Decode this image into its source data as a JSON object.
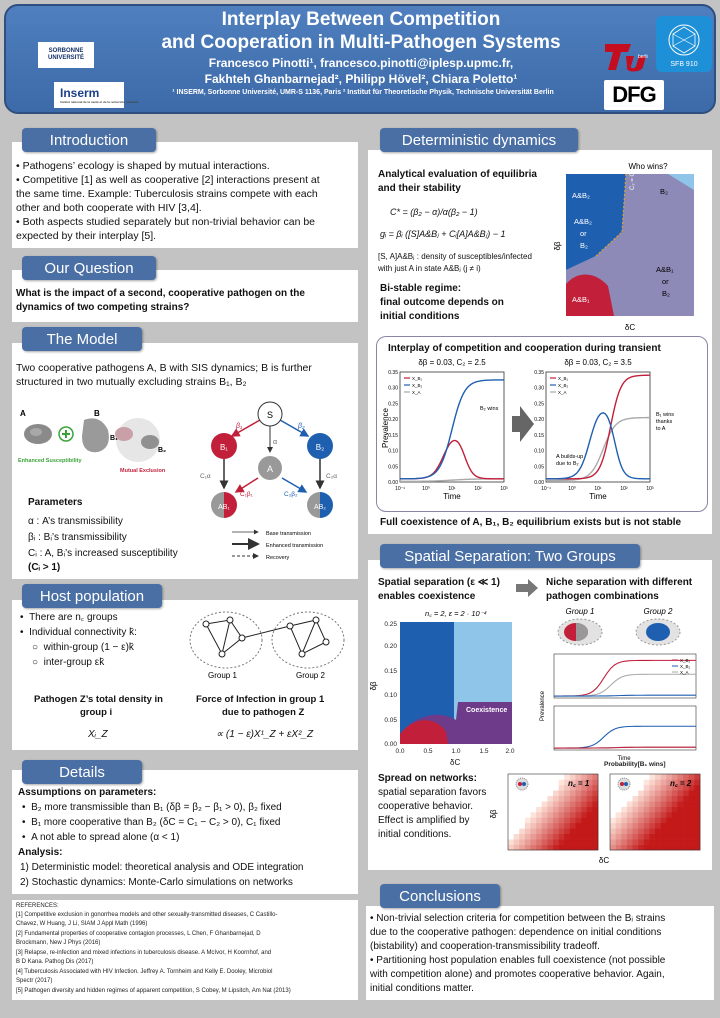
{
  "header": {
    "title_line1": "Interplay Between Competition",
    "title_line2": "and Cooperation in Multi-Pathogen Systems",
    "authors_line1": "Francesco Pinotti¹, francesco.pinotti@iplesp.upmc.fr,",
    "authors_line2": "Fakhteh Ghanbarnejad², Philipp Hövel², Chiara Poletto¹",
    "affiliations": "¹ INSERM, Sorbonne Université, UMR-S 1136, Paris ² Institut für Theoretische Physik, Technische Universität Berlin",
    "logos": {
      "sorbonne": "SORBONNE UNIVERSITÉ",
      "inserm": "Inserm",
      "inserm_sub": "Institut national de la santé et de la recherche médicale",
      "tu": "berlin",
      "sfb": "SFB 910",
      "dfg": "DFG"
    }
  },
  "intro": {
    "heading": "Introduction",
    "lines": [
      "• Pathogens’ ecology is shaped by mutual interactions.",
      "• Competitive [1] as well as cooperative [2] interactions present at",
      "the same time. Example: Tuberculosis strains compete with each",
      "other and both cooperate with HIV [3,4].",
      "• Both aspects studied separately but non-trivial behavior can be",
      "expected by their interplay [5]."
    ]
  },
  "question": {
    "heading": "Our Question",
    "line1": "What is the impact of a second, cooperative pathogen on the",
    "line2": "dynamics of two competing strains?"
  },
  "model": {
    "heading": "The Model",
    "line1": "Two cooperative pathogens A, B with SIS dynamics; B is further",
    "line2": "structured in two mutually excluding strains B₁, B₂",
    "fig": {
      "A": "A",
      "B": "B",
      "B1": "B₁",
      "B2": "B₂",
      "enh": "Enhanced Susceptibility",
      "mut": "Mutual Exclusion",
      "S": "S",
      "Anode": "A",
      "B1node": "B₁",
      "B2node": "B₂",
      "AB1": "AB₁",
      "AB2": "AB₂",
      "beta1": "β₁",
      "beta2": "β₂",
      "alpha": "α",
      "c1a": "C₁α",
      "c2a": "C₂α",
      "c1b1": "C₁β₁",
      "c2b2": "C₂β₂"
    },
    "params_title": "Parameters",
    "p_alpha": "α : A’s transmissibility",
    "p_beta": "βᵢ : Bᵢ’s transmissibility",
    "p_c": "Cᵢ : A, Bᵢ’s increased susceptibility",
    "p_c2": "(Cᵢ > 1)",
    "leg_base": "Base transmission",
    "leg_enh": "Enhanced transmission",
    "leg_rec": "Recovery"
  },
  "host": {
    "heading": "Host population",
    "items": [
      "There are n꜀ groups",
      "Individual connectivity k̄:",
      "within-group (1 − ε)k̄",
      "inter-group  εk̄"
    ],
    "density1": "Pathogen Z’s total density in",
    "density2": "group i",
    "density_sym": "Xᵢ_Z",
    "force1": "Force of Infection in group 1",
    "force2": "due to pathogen Z",
    "force_eq": "∝ (1 − ε)X¹_Z + εX²_Z",
    "group1": "Group 1",
    "group2": "Group 2"
  },
  "details": {
    "heading": "Details",
    "assume": "Assumptions on parameters:",
    "a1": "B₂ more transmissible than B₁ (δβ = β₂ − β₁ > 0), β₂ fixed",
    "a2": "B₁ more cooperative than B₂ (δC = C₁ − C₂ > 0), C₁ fixed",
    "a3": "A not able to spread alone (α < 1)",
    "analysis": "Analysis:",
    "n1": "1)  Deterministic model: theoretical analysis and ODE integration",
    "n2": "2)  Stochastic dynamics: Monte-Carlo simulations on networks"
  },
  "refs": {
    "title": "REFERENCES:",
    "lines": [
      "[1] Competitive exclusion in gonorrhea models and other sexually-transmitted diseases, C Castillo-",
      "Chavez, W Huang, J Li, SIAM J Appl Math (1996)",
      "[2] Fundamental properties of cooperative contagion processes, L Chen, F Ghanbarnejad, D",
      "Brockmann, New J Phys (2016)",
      "[3] Relapse, re-infection and mixed infections in tuberculosis disease. A McIvor, H Koornhof, and",
      "B D Kana. Pathog Dis (2017)",
      "[4] Tuberculosis Associated with HIV Infection. Jeffrey A. Tornheim and Kelly E. Dooley, Microbiol",
      "Spectr (2017)",
      "[5] Pathogen diversity and hidden regimes of apparent competition, S Cobey, M Lipsitch,  Am Nat (2013)"
    ]
  },
  "det": {
    "heading": "Deterministic dynamics",
    "analytic1": "Analytical evaluation of equilibria",
    "analytic2": "and their stability",
    "eq1": "C* = (β₂ − α)/α(β₂ − 1)",
    "eq2": "gᵢ = βᵢ ([S]A&Bⱼ + Cᵢ[A]A&Bⱼ) − 1",
    "note1": "[S, A]A&Bⱼ : density of susceptibles/infected",
    "note2": "with just A in state A&Bⱼ (j ≠ i)",
    "bistable1": "Bi-stable regime:",
    "bistable2": "final outcome depends on",
    "bistable3": "initial conditions",
    "who": "Who wins?",
    "reg_ab2": "A&B₂",
    "reg_ab2orb2a": "A&B₂",
    "reg_or": "or",
    "reg_b2a": "B₂",
    "reg_b2": "B₂",
    "reg_ab1orb2a": "A&B₁",
    "reg_or2": "or",
    "reg_b2b": "B₂",
    "reg_ab1": "A&B₁",
    "cstar": "C₂ = C*",
    "db": "δβ",
    "dc": "δC",
    "interplay": "Interplay of competition and cooperation during transient",
    "p1_title": "δβ = 0.03, C₂ = 2.5",
    "p2_title": "δβ = 0.03, C₂ = 3.5",
    "ylabel": "Prevalence",
    "xlabel": "Time",
    "yticks": [
      "0.00",
      "0.05",
      "0.10",
      "0.15",
      "0.20",
      "0.25",
      "0.30",
      "0.35"
    ],
    "xticks": [
      "10⁻¹",
      "10⁰",
      "10¹",
      "10²",
      "10³"
    ],
    "leg": [
      "X_B₁",
      "X_B₂",
      "X_A"
    ],
    "ann_b2wins": "B₂ wins",
    "ann_abuild1": "A builds-up",
    "ann_abuild2": "due to B₂",
    "ann_b1wins1": "B₁ wins",
    "ann_b1wins2": "thanks",
    "ann_b1wins3": "to A",
    "full": "Full coexistence of A, B₁, B₂ equilibrium exists but is not stable"
  },
  "spatial": {
    "heading": "Spatial Separation: Two Groups",
    "s1": "Spatial separation (ε ≪ 1)",
    "s2": "enables coexistence",
    "n1": "Niche separation with different",
    "n2": "pathogen combinations",
    "map_title": "n꜀ = 2, ε = 2 · 10⁻⁴",
    "coex": "Coexistence",
    "yticks": [
      "0.00",
      "0.05",
      "0.10",
      "0.15",
      "0.20",
      "0.25"
    ],
    "xticks": [
      "0.0",
      "0.5",
      "1.0",
      "1.5",
      "2.0"
    ],
    "db": "δβ",
    "dc": "δC",
    "g1": "Group 1",
    "g2": "Group 2",
    "prev": "Prevalence",
    "time": "Time",
    "spread1": "Spread on networks:",
    "spread2": "spatial separation favors",
    "spread3": "cooperative behavior.",
    "spread4": "Effect is amplified by",
    "spread5": "initial conditions.",
    "prob": "Probability[B₁ wins]",
    "nc1": "n꜀ = 1",
    "nc2": "n꜀ = 2"
  },
  "conc": {
    "heading": "Conclusions",
    "lines": [
      "• Non-trivial selection criteria for competition between the Bᵢ strains",
      "due to the cooperative pathogen: dependence on initial conditions",
      "(bistability) and cooperation-transmissibility tradeoff.",
      "• Partitioning host population enables full coexistence (not possible",
      "with competition alone) and promotes cooperative behavior. Again,",
      "initial conditions matter."
    ]
  },
  "colors": {
    "blue": "#1f5fb0",
    "lightblue": "#8ec5e8",
    "red": "#c21f3a",
    "purple": "#6e3a8a",
    "header": "#4a6fa5"
  }
}
